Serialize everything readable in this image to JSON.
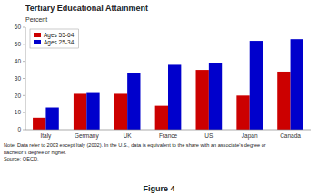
{
  "chart_data": {
    "type": "bar",
    "title": "Tertiary Educational Attainment",
    "y_label": "Percent",
    "categories": [
      "Italy",
      "Germany",
      "UK",
      "France",
      "US",
      "Japan",
      "Canada"
    ],
    "series": [
      {
        "name": "Ages 55-64",
        "color": "#cc0000",
        "values": [
          7,
          21,
          21,
          14,
          35,
          20,
          34
        ]
      },
      {
        "name": "Ages 25-34",
        "color": "#0000cc",
        "values": [
          13,
          22,
          33,
          38,
          39,
          52,
          53
        ]
      }
    ],
    "ylim": [
      0,
      60
    ],
    "yticks": [
      0,
      10,
      20,
      30,
      40,
      50,
      60
    ],
    "grid": false,
    "legend": "upper-left",
    "annotations": [
      "Note: Data refer to 2003 except Italy (2002).  In the U.S., data is equivalent to the share with an associate's degree or",
      "bachelor's degree or higher.",
      "Source: OECD.",
      "Figure 4"
    ]
  }
}
